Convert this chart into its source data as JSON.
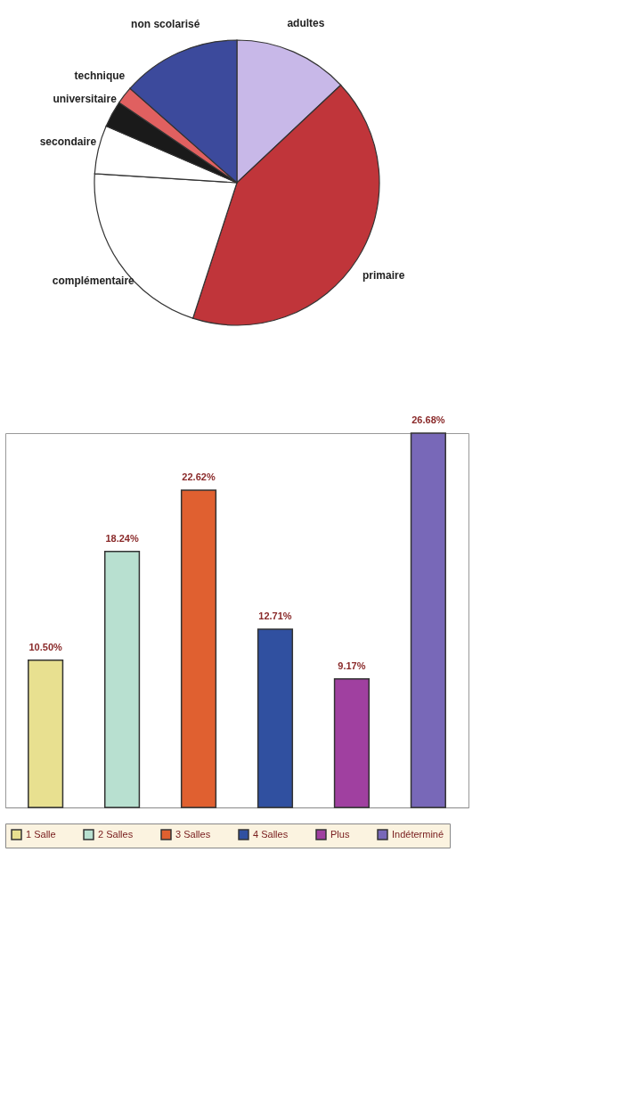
{
  "chart_data": [
    {
      "type": "pie",
      "categories": [
        "adultes",
        "primaire",
        "complémentaire",
        "secondaire",
        "universitaire",
        "technique",
        "non scolarisé"
      ],
      "values": [
        13,
        42,
        21,
        5.5,
        3,
        2,
        13.5
      ],
      "colors": [
        "#c8b8e8",
        "#c0353a",
        "#ffffff",
        "#ffffff",
        "#1a1a1a",
        "#e06060",
        "#3c4a9c"
      ]
    },
    {
      "type": "bar",
      "categories": [
        null,
        null,
        null,
        null,
        null,
        null
      ],
      "series": [
        {
          "name": "1 Salle",
          "color": "#e8e090",
          "values": [
            10.5,
            null,
            null,
            null,
            null,
            null
          ],
          "value_labels": [
            "10.50%",
            null,
            null,
            null,
            null,
            null
          ]
        },
        {
          "name": "2 Salles",
          "color": "#b8e0d0",
          "values": [
            null,
            18.24,
            null,
            null,
            null,
            null
          ],
          "value_labels": [
            null,
            "18.24%",
            null,
            null,
            null,
            null
          ]
        },
        {
          "name": "3 Salles",
          "color": "#e06030",
          "values": [
            null,
            null,
            22.62,
            null,
            null,
            null
          ],
          "value_labels": [
            null,
            null,
            "22.62%",
            null,
            null,
            null
          ]
        },
        {
          "name": "4 Salles",
          "color": "#3050a0",
          "values": [
            null,
            null,
            null,
            12.71,
            null,
            null
          ],
          "value_labels": [
            null,
            null,
            null,
            "12.71%",
            null,
            null
          ]
        },
        {
          "name": "Plus",
          "color": "#a040a0",
          "values": [
            null,
            null,
            null,
            null,
            9.17,
            null
          ],
          "value_labels": [
            null,
            null,
            null,
            null,
            "9.17%",
            null
          ]
        },
        {
          "name": "Indéterminé",
          "color": "#7868b8",
          "values": [
            null,
            null,
            null,
            null,
            null,
            26.68
          ],
          "value_labels": [
            null,
            null,
            null,
            null,
            null,
            "26.68%"
          ]
        }
      ],
      "stacked": true,
      "legend": "bottom"
    }
  ]
}
